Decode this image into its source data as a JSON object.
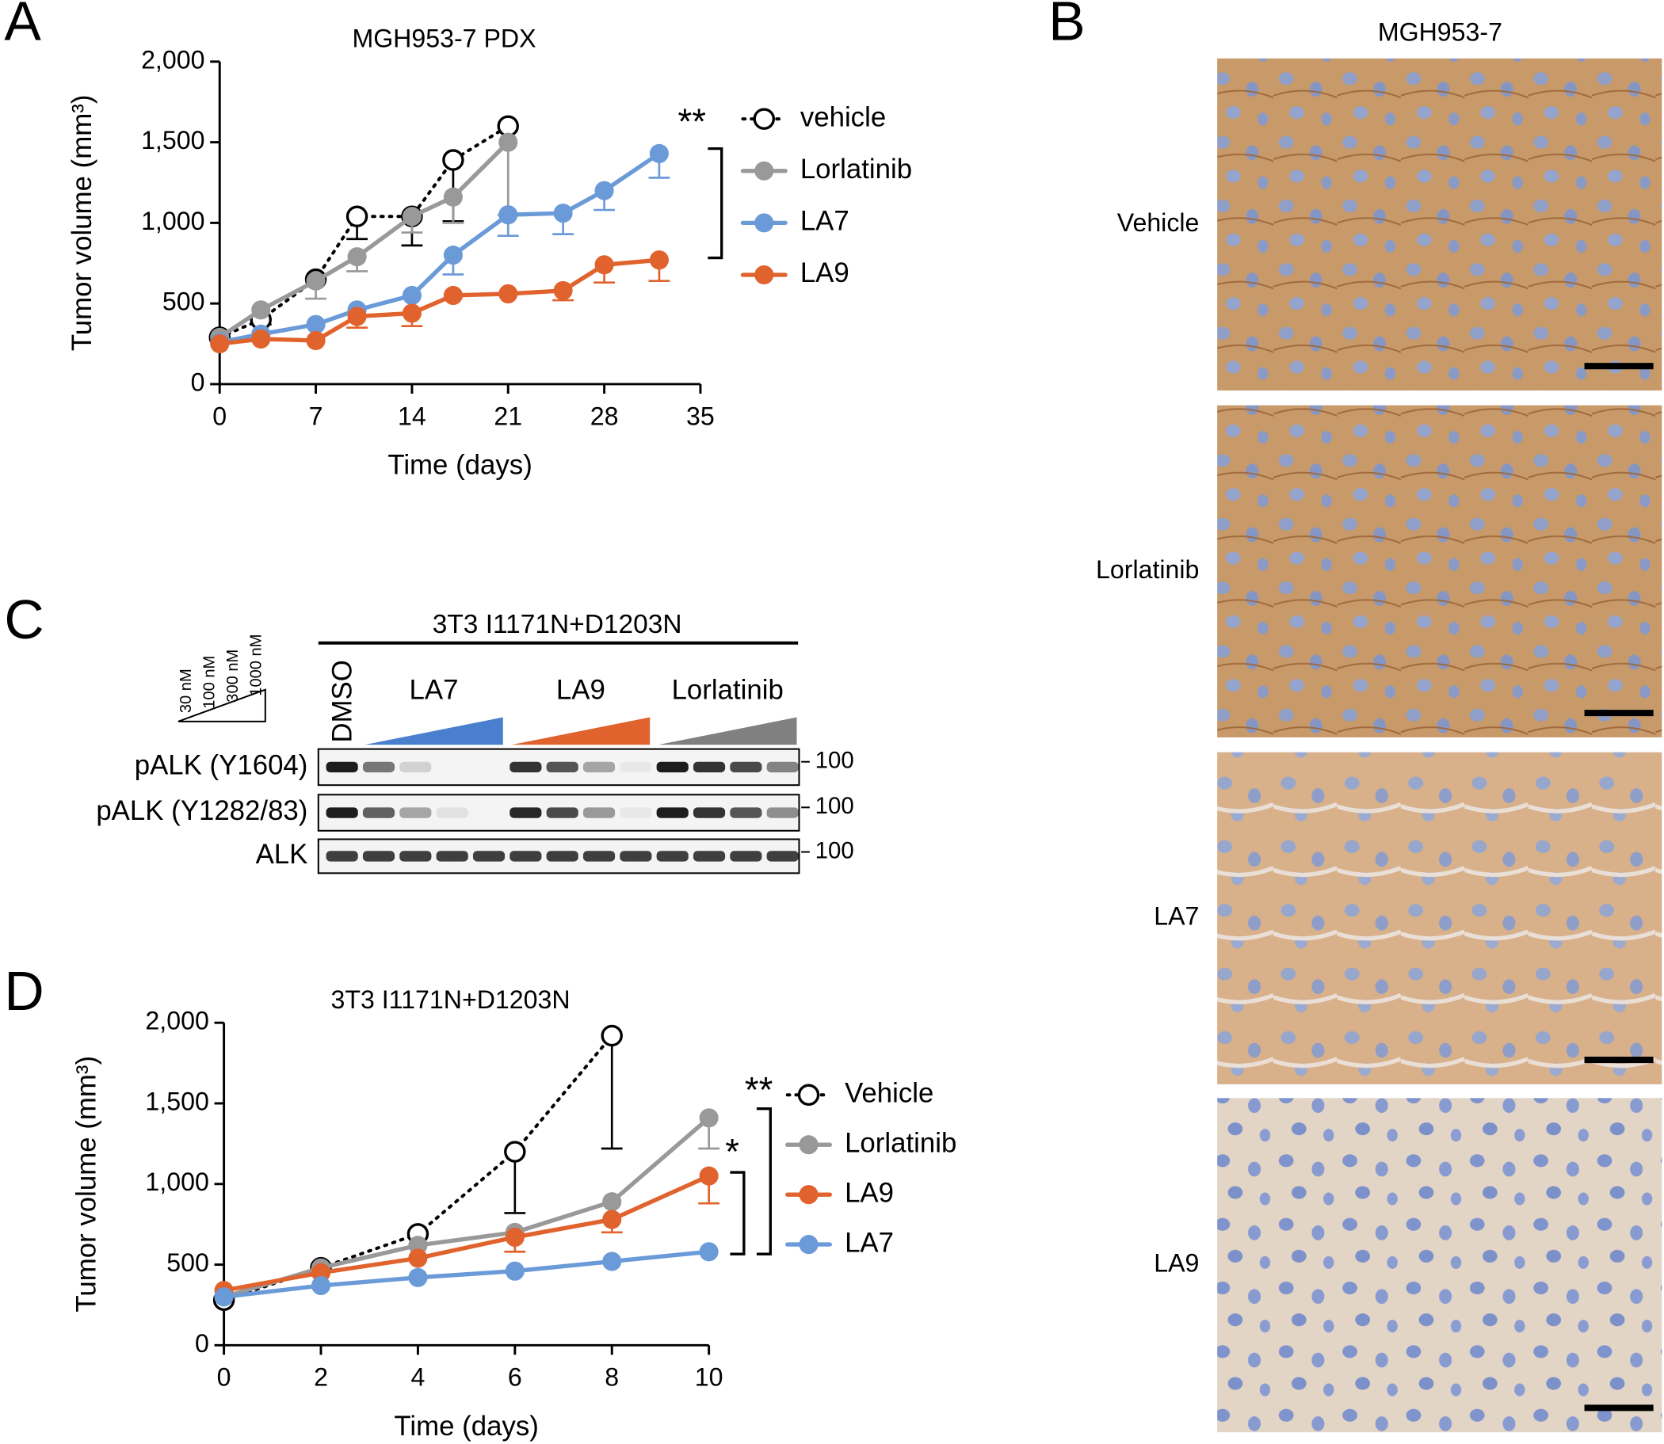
{
  "panel_labels": [
    "A",
    "B",
    "C",
    "D"
  ],
  "chart_data": [
    {
      "type": "line",
      "title": "MGH953-7 PDX",
      "x_label": "Time (days)",
      "y_label": "Tumor volume (mm³)",
      "xlim": [
        0,
        35
      ],
      "xticks": [
        0,
        7,
        14,
        21,
        28,
        35
      ],
      "ylim": [
        0,
        2000
      ],
      "yticks": [
        0,
        500,
        {
          "value": 1000,
          "label": "1,000"
        },
        {
          "value": 1500,
          "label": "1,500"
        },
        {
          "value": 2000,
          "label": "2,000"
        }
      ],
      "annotations": [
        "**"
      ],
      "series": [
        {
          "name": "vehicle",
          "color": "#000000",
          "style": "dotted-open",
          "x": [
            0,
            3,
            7,
            10,
            14,
            17,
            21
          ],
          "values": [
            290,
            400,
            650,
            1040,
            1040,
            1390,
            1600
          ],
          "errors": [
            0,
            30,
            0,
            140,
            180,
            380,
            0
          ]
        },
        {
          "name": "Lorlatinib",
          "color": "#999999",
          "style": "solid",
          "x": [
            0,
            3,
            7,
            10,
            14,
            17,
            21
          ],
          "values": [
            290,
            460,
            640,
            790,
            1040,
            1160,
            1500
          ],
          "errors": [
            0,
            0,
            110,
            90,
            100,
            160,
            450
          ]
        },
        {
          "name": "LA7",
          "color": "#6a9ad8",
          "style": "solid",
          "x": [
            0,
            3,
            7,
            10,
            14,
            17,
            21,
            25,
            28,
            32
          ],
          "values": [
            260,
            310,
            370,
            460,
            550,
            800,
            1050,
            1060,
            1200,
            1430
          ],
          "errors": [
            0,
            0,
            0,
            0,
            0,
            120,
            130,
            130,
            120,
            150
          ]
        },
        {
          "name": "LA9",
          "color": "#e0622d",
          "style": "solid",
          "x": [
            0,
            3,
            7,
            10,
            14,
            17,
            21,
            25,
            28,
            32
          ],
          "values": [
            250,
            280,
            270,
            420,
            440,
            550,
            560,
            580,
            740,
            770
          ],
          "errors": [
            0,
            0,
            0,
            70,
            80,
            0,
            0,
            60,
            110,
            130
          ]
        }
      ]
    },
    {
      "type": "line",
      "title": "3T3 I1171N+D1203N",
      "x_label": "Time (days)",
      "y_label": "Tumor volume (mm³)",
      "xlim": [
        0,
        10
      ],
      "xticks": [
        0,
        2,
        4,
        6,
        8,
        10
      ],
      "ylim": [
        0,
        2000
      ],
      "yticks": [
        0,
        500,
        {
          "value": 1000,
          "label": "1,000"
        },
        {
          "value": 1500,
          "label": "1,500"
        },
        {
          "value": 2000,
          "label": "2,000"
        }
      ],
      "annotations": [
        "**",
        "*"
      ],
      "series": [
        {
          "name": "Vehicle",
          "color": "#000000",
          "style": "dotted-open",
          "x": [
            0,
            2,
            4,
            6,
            8
          ],
          "values": [
            280,
            480,
            690,
            1200,
            1920
          ],
          "errors": [
            0,
            0,
            0,
            380,
            700
          ]
        },
        {
          "name": "Lorlatinib",
          "color": "#999999",
          "style": "solid",
          "x": [
            0,
            2,
            4,
            6,
            8,
            10
          ],
          "values": [
            300,
            480,
            620,
            700,
            890,
            1410
          ],
          "errors": [
            0,
            0,
            0,
            0,
            0,
            190
          ]
        },
        {
          "name": "LA9",
          "color": "#e0622d",
          "style": "solid",
          "x": [
            0,
            2,
            4,
            6,
            8,
            10
          ],
          "values": [
            340,
            450,
            540,
            670,
            780,
            1050
          ],
          "errors": [
            0,
            0,
            0,
            90,
            80,
            170
          ]
        },
        {
          "name": "LA7",
          "color": "#6a9ad8",
          "style": "solid",
          "x": [
            0,
            2,
            4,
            6,
            8,
            10
          ],
          "values": [
            300,
            370,
            420,
            460,
            520,
            580
          ],
          "errors": [
            0,
            0,
            0,
            0,
            0,
            0
          ]
        }
      ]
    }
  ],
  "blot": {
    "title": "3T3 I1171N+D1203N",
    "concentrations": [
      "30 nM",
      "100 nM",
      "300 nM",
      "1000 nM"
    ],
    "lanes": [
      "DMSO",
      "LA7",
      "LA9",
      "Lorlatinib"
    ],
    "lane_colors": [
      "#000000",
      "#4a7fd0",
      "#e0622d",
      "#808080"
    ],
    "rows": [
      "pALK (Y1604)",
      "pALK (Y1282/83)",
      "ALK"
    ],
    "mw": [
      "100",
      "100",
      "100"
    ]
  },
  "ihc": {
    "title": "MGH953-7",
    "rows": [
      "Vehicle",
      "Lorlatinib",
      "LA7",
      "LA9"
    ]
  }
}
